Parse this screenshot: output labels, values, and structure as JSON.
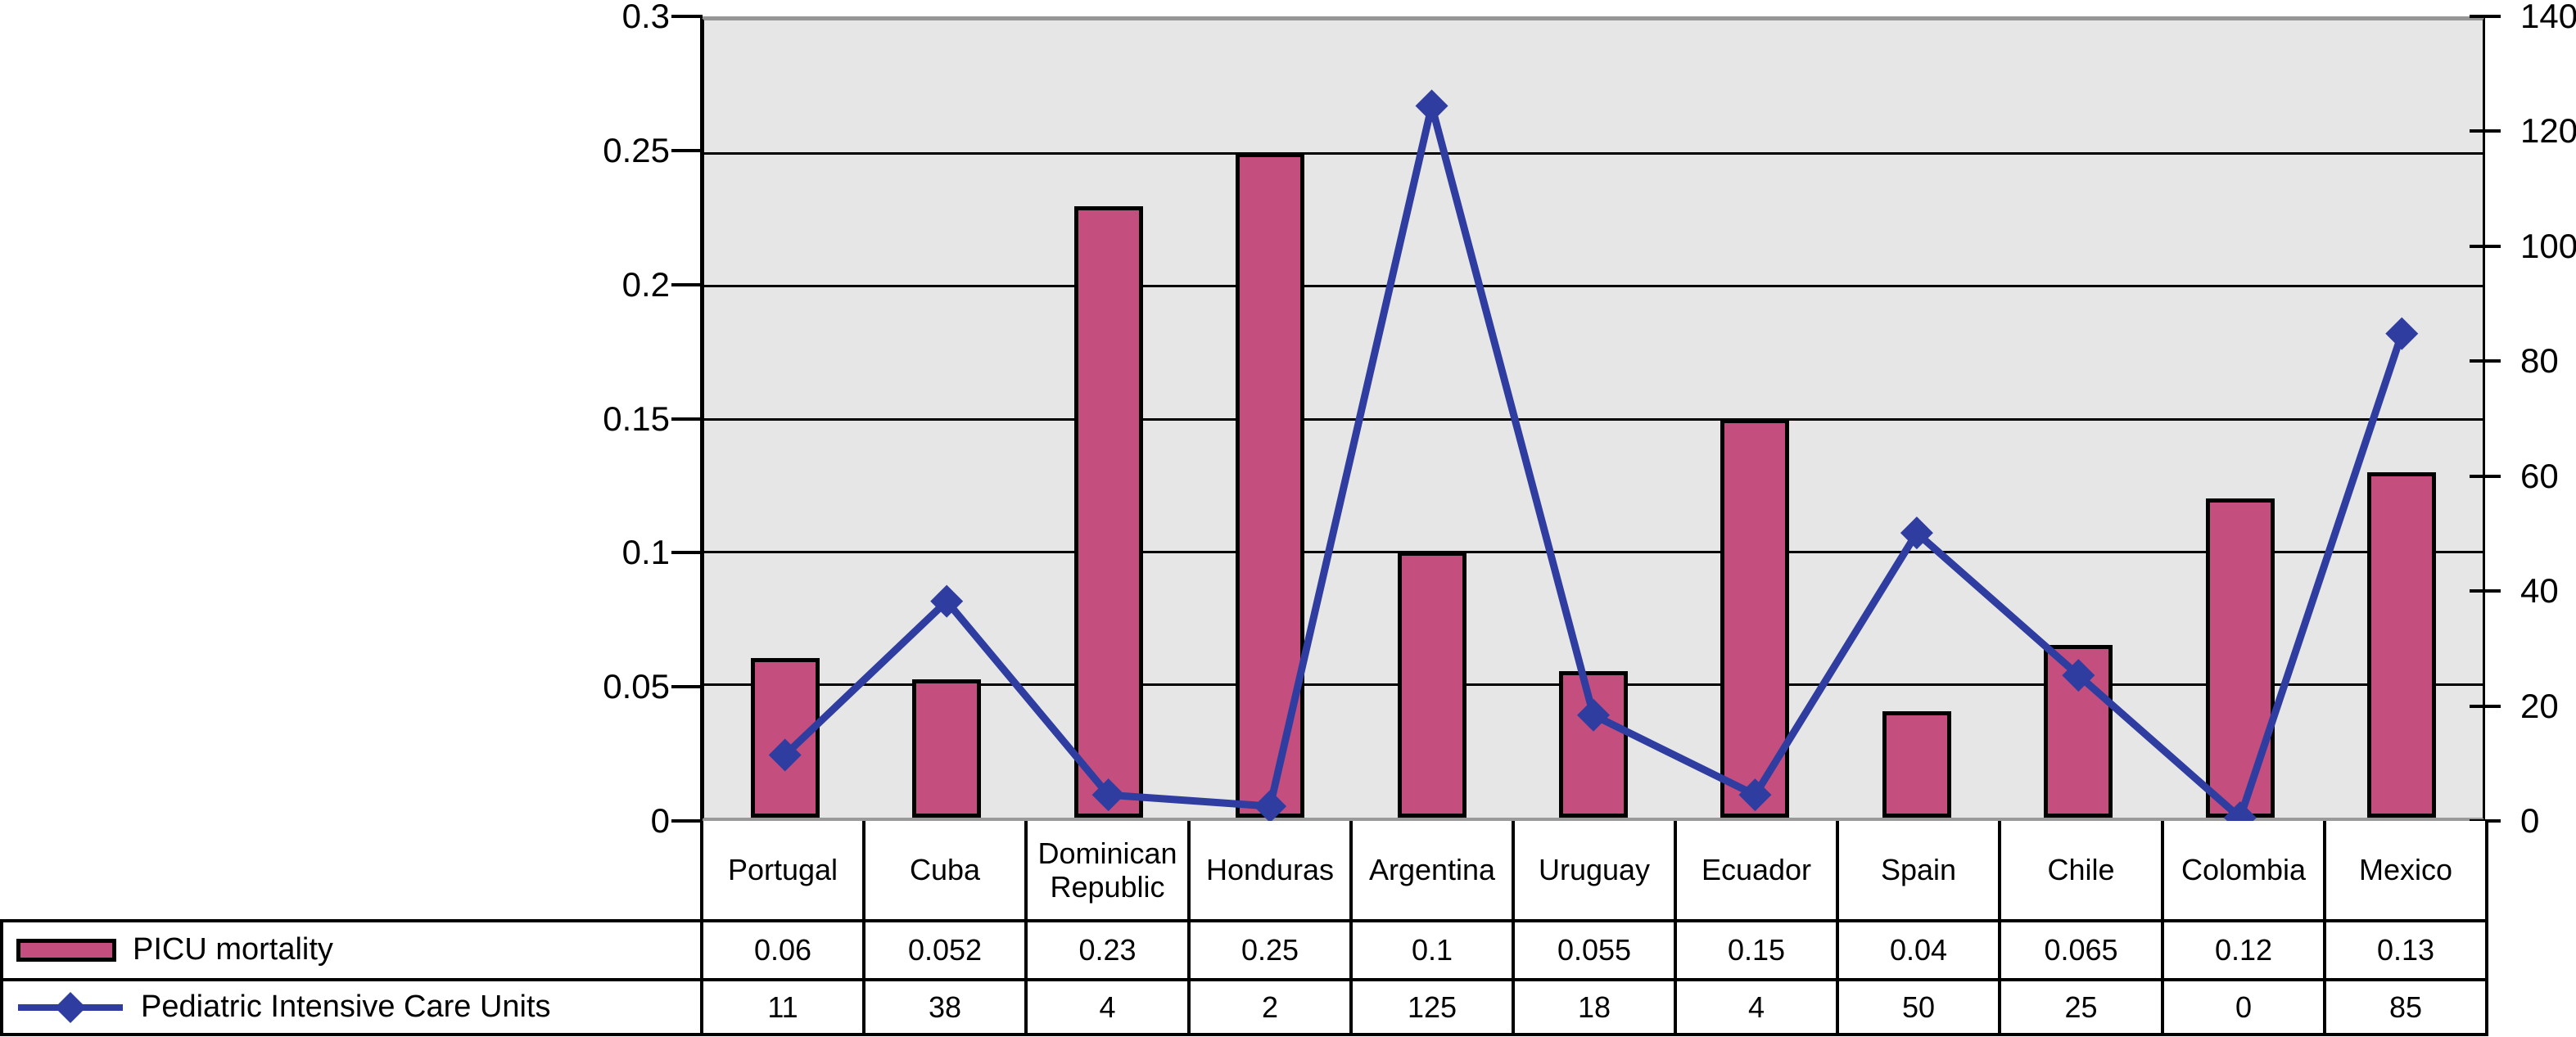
{
  "chart_data": {
    "type": "combo",
    "title": "",
    "categories": [
      "Portugal",
      "Cuba",
      "Dominican Republic",
      "Honduras",
      "Argentina",
      "Uruguay",
      "Ecuador",
      "Spain",
      "Chile",
      "Colombia",
      "Mexico"
    ],
    "series": [
      {
        "name": "PICU mortality",
        "type": "bar",
        "axis": "left",
        "color": "#C44E7E",
        "values": [
          0.06,
          0.052,
          0.23,
          0.25,
          0.1,
          0.055,
          0.15,
          0.04,
          0.065,
          0.12,
          0.13
        ],
        "display_values": [
          "0.06",
          "0.052",
          "0.23",
          "0.25",
          "0.1",
          "0.055",
          "0.15",
          "0.04",
          "0.065",
          "0.12",
          "0.13"
        ]
      },
      {
        "name": "Pediatric Intensive Care Units",
        "type": "line",
        "axis": "right",
        "marker": "diamond",
        "color": "#2F3DA0",
        "values": [
          11,
          38,
          4,
          2,
          125,
          18,
          4,
          50,
          25,
          0,
          85
        ],
        "display_values": [
          "11",
          "38",
          "4",
          "2",
          "125",
          "18",
          "4",
          "50",
          "25",
          "0",
          "85"
        ]
      }
    ],
    "left_axis": {
      "min": 0,
      "max": 0.3,
      "tick_labels": [
        "0.3",
        "0.25",
        "0.2",
        "0.15",
        "0.1",
        "0.05",
        "0"
      ]
    },
    "right_axis": {
      "min": 0,
      "max": 140,
      "tick_labels": [
        "140",
        "120",
        "100",
        "80",
        "60",
        "40",
        "20",
        "0"
      ]
    },
    "grid": true,
    "legend_position": "table-left",
    "plot_bg": "#E6E6E6"
  },
  "colors": {
    "bar_fill": "#C44E7E",
    "bar_border": "#000000",
    "line": "#2F3DA0",
    "plot_bg": "#E6E6E6",
    "plot_border_gray": "#969696",
    "grid": "#000000",
    "table_border": "#000000",
    "text": "#000000"
  }
}
